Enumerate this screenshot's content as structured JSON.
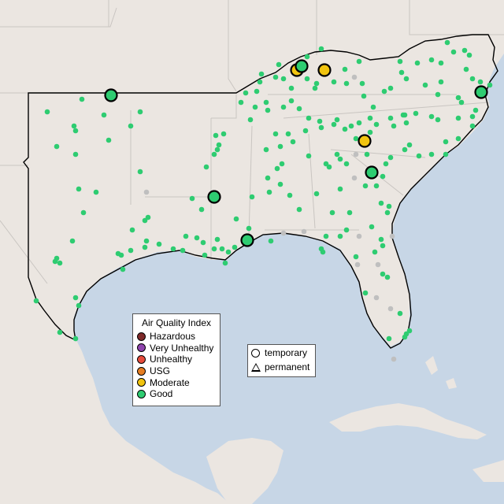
{
  "legend_aqi": {
    "title": "Air Quality Index",
    "items": [
      {
        "label": "Hazardous",
        "color": "#7e2a2a"
      },
      {
        "label": "Very Unhealthy",
        "color": "#8e44ad"
      },
      {
        "label": "Unhealthy",
        "color": "#e74c3c"
      },
      {
        "label": "USG",
        "color": "#e67e22"
      },
      {
        "label": "Moderate",
        "color": "#f1c40f"
      },
      {
        "label": "Good",
        "color": "#2ecc71"
      }
    ]
  },
  "legend_type": {
    "items": [
      {
        "label": "temporary",
        "shape": "circle"
      },
      {
        "label": "permanent",
        "shape": "triangle"
      }
    ]
  },
  "colors": {
    "water": "#c7d6e6",
    "land": "#ebe6e1",
    "good": "#2ecc71",
    "moderate": "#f1c40f",
    "no_data": "#bfbfbf"
  },
  "monitors_large": [
    {
      "category": "Good"
    },
    {
      "category": "Good"
    },
    {
      "category": "Moderate"
    },
    {
      "category": "Good"
    },
    {
      "category": "Moderate"
    },
    {
      "category": "Moderate"
    },
    {
      "category": "Good"
    },
    {
      "category": "Good"
    },
    {
      "category": "Good"
    }
  ]
}
